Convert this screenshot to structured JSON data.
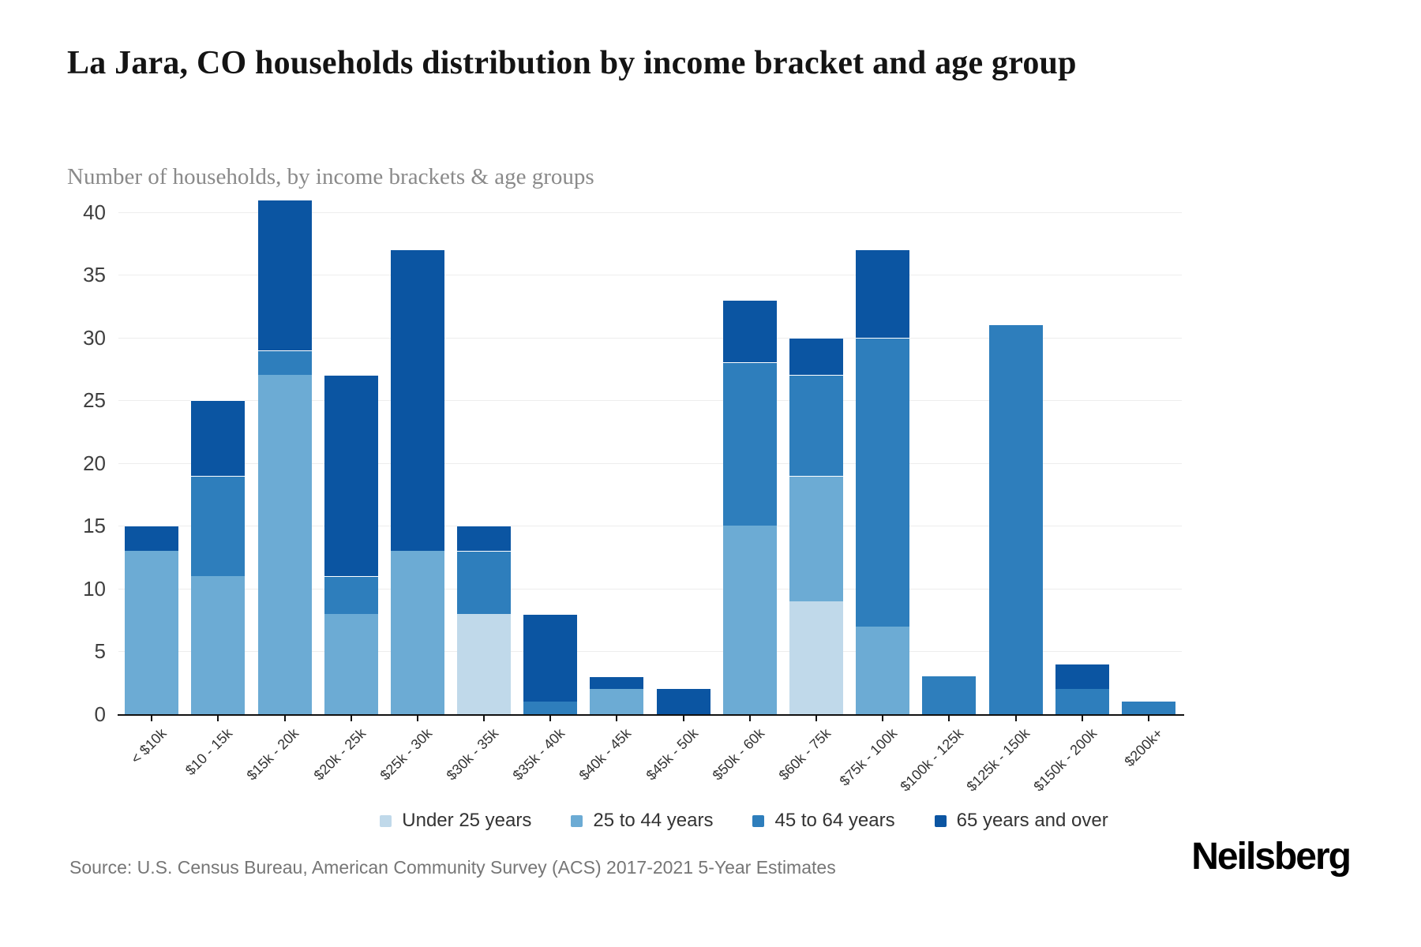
{
  "chart_data": {
    "type": "bar",
    "stacked": true,
    "title": "La Jara, CO households distribution by income bracket and age group",
    "subtitle": "Number of households, by income brackets & age groups",
    "source": "Source: U.S. Census Bureau, American Community Survey (ACS) 2017-2021 5-Year Estimates",
    "categories": [
      "< $10k",
      "$10 - 15k",
      "$15k - 20k",
      "$20k - 25k",
      "$25k - 30k",
      "$30k - 35k",
      "$35k - 40k",
      "$40k - 45k",
      "$45k - 50k",
      "$50k - 60k",
      "$60k - 75k",
      "$75k - 100k",
      "$100k - 125k",
      "$125k - 150k",
      "$150k - 200k",
      "$200k+"
    ],
    "series": [
      {
        "name": "Under 25 years",
        "color": "#c0d9ea",
        "values": [
          0,
          0,
          0,
          0,
          0,
          8,
          0,
          0,
          0,
          0,
          9,
          0,
          0,
          0,
          0,
          0
        ]
      },
      {
        "name": "25 to 44 years",
        "color": "#6cabd4",
        "values": [
          13,
          11,
          27,
          8,
          13,
          0,
          0,
          2,
          0,
          15,
          10,
          7,
          0,
          0,
          0,
          0
        ]
      },
      {
        "name": "45 to 64 years",
        "color": "#2e7ebc",
        "values": [
          0,
          8,
          2,
          3,
          0,
          5,
          1,
          0,
          0,
          13,
          8,
          23,
          3,
          31,
          2,
          1
        ]
      },
      {
        "name": "65 years and over",
        "color": "#0b55a2",
        "values": [
          2,
          6,
          12,
          16,
          24,
          2,
          7,
          1,
          2,
          5,
          3,
          7,
          0,
          0,
          2,
          0
        ]
      }
    ],
    "totals": [
      15,
      25,
      41,
      27,
      37,
      15,
      8,
      3,
      2,
      33,
      30,
      37,
      3,
      31,
      4,
      1
    ],
    "xlabel": "",
    "ylabel": "Number of households",
    "ylim": [
      0,
      41.6
    ],
    "yticks": [
      0,
      5,
      10,
      15,
      20,
      25,
      30,
      35,
      40
    ],
    "grid": "horizontal",
    "legend_position": "bottom"
  },
  "footer": {
    "logo": "Neilsberg"
  },
  "colors": {
    "background": "#ffffff",
    "title": "#141414",
    "subtitle": "#8a8a8a",
    "axis": "#111111",
    "gridline": "#ededed",
    "y_tick_label": "#3f3f3f",
    "x_tick_label": "#333333",
    "legend_label": "#333333",
    "source": "#767676",
    "segment_divider": "#ffffff"
  }
}
